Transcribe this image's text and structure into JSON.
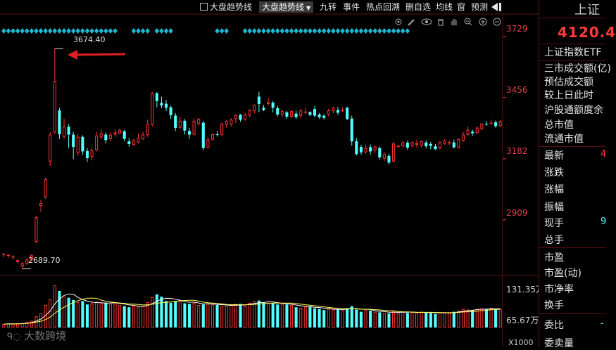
{
  "toolbar": {
    "checkbox_label": "大盘趋势线",
    "dropdown_label": "大盘趋势线",
    "items": [
      "九转",
      "事件",
      "热点回溯",
      "删自选",
      "均线",
      "窗",
      "预测"
    ]
  },
  "chart": {
    "price_axis": [
      "3729",
      "3456",
      "3182",
      "2909"
    ],
    "high_label": "3674.40",
    "low_label": "2689.70",
    "volume_axis": [
      "131.35万",
      "65.67万"
    ],
    "volume_unit": "X1000",
    "colors": {
      "up": "#ff3232",
      "down": "#54ffff",
      "axis_text": "#e0404a",
      "diamond": "#1fb9d3",
      "arrow": "#e02020"
    }
  },
  "chart_data": {
    "type": "candlestick",
    "ylim": [
      2660,
      3760
    ],
    "candles": [
      [
        2753,
        2757,
        2742,
        2760
      ],
      [
        2748,
        2752,
        2740,
        2756
      ],
      [
        2742,
        2745,
        2730,
        2750
      ],
      [
        2720,
        2728,
        2712,
        2735
      ],
      [
        2700,
        2715,
        2689.7,
        2720
      ],
      [
        2713,
        2731,
        2706,
        2737
      ],
      [
        2731,
        2750,
        2726,
        2756
      ],
      [
        2810,
        2920,
        2805,
        2928
      ],
      [
        2971,
        2983,
        2945,
        2998
      ],
      [
        3010,
        3090,
        3003,
        3097
      ],
      [
        3170,
        3290,
        3150,
        3300
      ],
      [
        3300,
        3529,
        3294,
        3674.4
      ],
      [
        3398,
        3292,
        3270,
        3410
      ],
      [
        3280,
        3325,
        3270,
        3362
      ],
      [
        3325,
        3290,
        3230,
        3337
      ],
      [
        3290,
        3235,
        3180,
        3302
      ],
      [
        3208,
        3280,
        3195,
        3292
      ],
      [
        3280,
        3215,
        3200,
        3287
      ],
      [
        3217,
        3185,
        3168,
        3230
      ],
      [
        3190,
        3220,
        3175,
        3233
      ],
      [
        3220,
        3286,
        3215,
        3302
      ],
      [
        3278,
        3295,
        3270,
        3315
      ],
      [
        3290,
        3265,
        3250,
        3300
      ],
      [
        3270,
        3290,
        3260,
        3300
      ],
      [
        3290,
        3300,
        3280,
        3314
      ],
      [
        3296,
        3310,
        3292,
        3318
      ],
      [
        3305,
        3271,
        3262,
        3312
      ],
      [
        3260,
        3248,
        3236,
        3275
      ],
      [
        3245,
        3265,
        3240,
        3272
      ],
      [
        3255,
        3275,
        3250,
        3295
      ],
      [
        3270,
        3290,
        3265,
        3302
      ],
      [
        3289,
        3337,
        3280,
        3357
      ],
      [
        3335,
        3475,
        3328,
        3481
      ],
      [
        3475,
        3440,
        3412,
        3480
      ],
      [
        3432,
        3420,
        3408,
        3460
      ],
      [
        3428,
        3410,
        3395,
        3445
      ],
      [
        3412,
        3377,
        3360,
        3420
      ],
      [
        3375,
        3320,
        3306,
        3387
      ],
      [
        3321,
        3352,
        3317,
        3370
      ],
      [
        3352,
        3308,
        3290,
        3360
      ],
      [
        3306,
        3290,
        3272,
        3320
      ],
      [
        3290,
        3352,
        3285,
        3362
      ],
      [
        3338,
        3360,
        3330,
        3365
      ],
      [
        3343,
        3230,
        3220,
        3352
      ],
      [
        3232,
        3268,
        3228,
        3280
      ],
      [
        3268,
        3292,
        3262,
        3297
      ],
      [
        3292,
        3290,
        3281,
        3306
      ],
      [
        3290,
        3337,
        3283,
        3344
      ],
      [
        3335,
        3352,
        3320,
        3356
      ],
      [
        3335,
        3357,
        3325,
        3364
      ],
      [
        3360,
        3378,
        3342,
        3381
      ],
      [
        3379,
        3356,
        3348,
        3382
      ],
      [
        3358,
        3379,
        3352,
        3388
      ],
      [
        3376,
        3400,
        3367,
        3404
      ],
      [
        3395,
        3424,
        3385,
        3425
      ],
      [
        3460,
        3427,
        3390,
        3482
      ],
      [
        3410,
        3400,
        3395,
        3422
      ],
      [
        3427,
        3435,
        3420,
        3453
      ],
      [
        3433,
        3410,
        3390,
        3440
      ],
      [
        3408,
        3380,
        3372,
        3418
      ],
      [
        3380,
        3395,
        3370,
        3402
      ],
      [
        3390,
        3370,
        3360,
        3397
      ],
      [
        3370,
        3395,
        3365,
        3400
      ],
      [
        3384,
        3368,
        3360,
        3397
      ],
      [
        3374,
        3398,
        3368,
        3404
      ],
      [
        3392,
        3393,
        3381,
        3411
      ],
      [
        3391,
        3378,
        3373,
        3394
      ],
      [
        3404,
        3375,
        3367,
        3418
      ],
      [
        3380,
        3368,
        3360,
        3387
      ],
      [
        3375,
        3365,
        3357,
        3380
      ],
      [
        3380,
        3398,
        3372,
        3406
      ],
      [
        3395,
        3410,
        3386,
        3414
      ],
      [
        3400,
        3388,
        3378,
        3414
      ],
      [
        3398,
        3400,
        3392,
        3410
      ],
      [
        3410,
        3360,
        3355,
        3415
      ],
      [
        3362,
        3260,
        3240,
        3375
      ],
      [
        3260,
        3203,
        3196,
        3275
      ],
      [
        3235,
        3211,
        3200,
        3245
      ],
      [
        3211,
        3230,
        3205,
        3245
      ],
      [
        3234,
        3215,
        3200,
        3246
      ],
      [
        3220,
        3236,
        3208,
        3242
      ],
      [
        3230,
        3188,
        3178,
        3236
      ],
      [
        3183,
        3202,
        3171,
        3212
      ],
      [
        3195,
        3165,
        3155,
        3205
      ],
      [
        3170,
        3250,
        3165,
        3258
      ],
      [
        3240,
        3240,
        3230,
        3245
      ],
      [
        3238,
        3256,
        3233,
        3260
      ],
      [
        3254,
        3232,
        3223,
        3264
      ],
      [
        3240,
        3255,
        3233,
        3260
      ],
      [
        3245,
        3252,
        3232,
        3268
      ],
      [
        3240,
        3260,
        3233,
        3265
      ],
      [
        3255,
        3238,
        3228,
        3264
      ],
      [
        3248,
        3240,
        3225,
        3257
      ],
      [
        3238,
        3225,
        3221,
        3248
      ],
      [
        3232,
        3256,
        3225,
        3262
      ],
      [
        3249,
        3262,
        3245,
        3270
      ],
      [
        3251,
        3256,
        3242,
        3264
      ],
      [
        3255,
        3233,
        3228,
        3268
      ],
      [
        3232,
        3270,
        3228,
        3272
      ],
      [
        3263,
        3290,
        3258,
        3302
      ],
      [
        3289,
        3312,
        3285,
        3325
      ],
      [
        3303,
        3296,
        3285,
        3313
      ],
      [
        3297,
        3321,
        3292,
        3327
      ],
      [
        3315,
        3339,
        3310,
        3342
      ],
      [
        3338,
        3336,
        3330,
        3350
      ],
      [
        3340,
        3343,
        3335,
        3356
      ],
      [
        3345,
        3328,
        3320,
        3353
      ],
      [
        3328,
        3350,
        3325,
        3357
      ]
    ],
    "volumes": [
      6,
      7,
      6,
      7,
      8,
      10,
      12,
      20,
      25,
      40,
      50,
      75,
      65,
      55,
      53,
      49,
      45,
      47,
      41,
      43,
      46,
      43,
      44,
      42,
      45,
      40,
      38,
      36,
      39,
      37,
      38,
      45,
      54,
      59,
      55,
      47,
      44,
      47,
      49,
      43,
      42,
      44,
      40,
      41,
      43,
      41,
      40,
      38,
      38,
      40,
      42,
      42,
      39,
      44,
      47,
      48,
      45,
      44,
      43,
      41,
      42,
      41,
      40,
      36,
      35,
      37,
      38,
      34,
      33,
      31,
      33,
      32,
      33,
      31,
      34,
      38,
      32,
      28,
      31,
      30,
      28,
      27,
      26,
      25,
      30,
      27,
      28,
      26,
      27,
      26,
      28,
      27,
      26,
      24,
      27,
      27,
      26,
      28,
      30,
      33,
      32,
      31,
      33,
      34,
      33,
      35,
      32,
      33
    ]
  },
  "right_panel": {
    "title": "上证",
    "price": "4120.4",
    "labels": [
      "上证指数ETF",
      "三市成交额(亿)",
      "预估成交额",
      "较上日此时",
      "沪股通额度余",
      "总市值",
      "流通市值",
      "最新",
      "涨跌",
      "涨幅",
      "振幅",
      "现手",
      "总手",
      "市盈",
      "市盈(动)",
      "市净率",
      "换手",
      "委比",
      "委卖量"
    ],
    "values": {
      "latest": "4",
      "current_hand": "9",
      "commission_ratio": "-"
    }
  },
  "watermark": "大数跨境"
}
